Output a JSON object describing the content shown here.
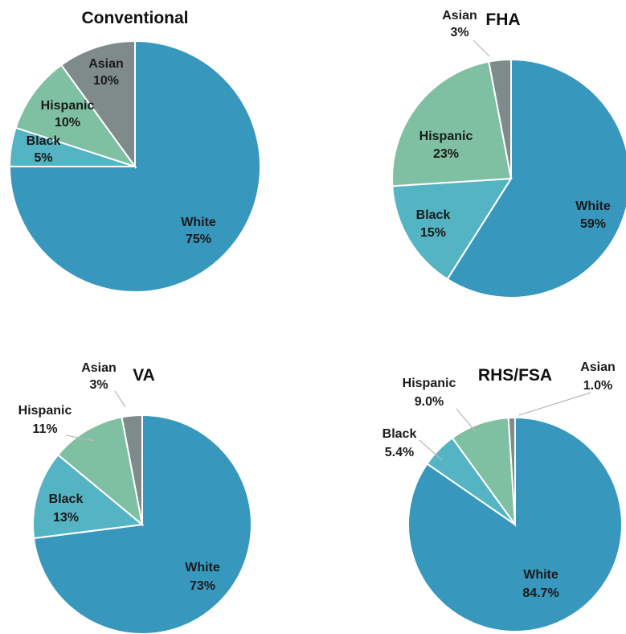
{
  "colors": {
    "white": "#3797BD",
    "black": "#55B4C3",
    "hispanic": "#7FBFA2",
    "asian": "#7F8B8B"
  },
  "chart_data": [
    {
      "type": "pie",
      "title": "Conventional",
      "slices": [
        {
          "label": "White",
          "value": 75,
          "value_text": "75%",
          "color": "#3797BD"
        },
        {
          "label": "Black",
          "value": 5,
          "value_text": "5%",
          "color": "#55B4C3"
        },
        {
          "label": "Hispanic",
          "value": 10,
          "value_text": "10%",
          "color": "#7FBFA2"
        },
        {
          "label": "Asian",
          "value": 10,
          "value_text": "10%",
          "color": "#7F8B8B"
        }
      ]
    },
    {
      "type": "pie",
      "title": "FHA",
      "slices": [
        {
          "label": "White",
          "value": 59,
          "value_text": "59%",
          "color": "#3797BD"
        },
        {
          "label": "Black",
          "value": 15,
          "value_text": "15%",
          "color": "#55B4C3"
        },
        {
          "label": "Hispanic",
          "value": 23,
          "value_text": "23%",
          "color": "#7FBFA2"
        },
        {
          "label": "Asian",
          "value": 3,
          "value_text": "3%",
          "color": "#7F8B8B"
        }
      ]
    },
    {
      "type": "pie",
      "title": "VA",
      "slices": [
        {
          "label": "White",
          "value": 73,
          "value_text": "73%",
          "color": "#3797BD"
        },
        {
          "label": "Black",
          "value": 13,
          "value_text": "13%",
          "color": "#55B4C3"
        },
        {
          "label": "Hispanic",
          "value": 11,
          "value_text": "11%",
          "color": "#7FBFA2"
        },
        {
          "label": "Asian",
          "value": 3,
          "value_text": "3%",
          "color": "#7F8B8B"
        }
      ]
    },
    {
      "type": "pie",
      "title": "RHS/FSA",
      "slices": [
        {
          "label": "White",
          "value": 84.7,
          "value_text": "84.7%",
          "color": "#3797BD"
        },
        {
          "label": "Black",
          "value": 5.4,
          "value_text": "5.4%",
          "color": "#55B4C3"
        },
        {
          "label": "Hispanic",
          "value": 9.0,
          "value_text": "9.0%",
          "color": "#7FBFA2"
        },
        {
          "label": "Asian",
          "value": 1.0,
          "value_text": "1.0%",
          "color": "#7F8B8B"
        }
      ]
    }
  ]
}
